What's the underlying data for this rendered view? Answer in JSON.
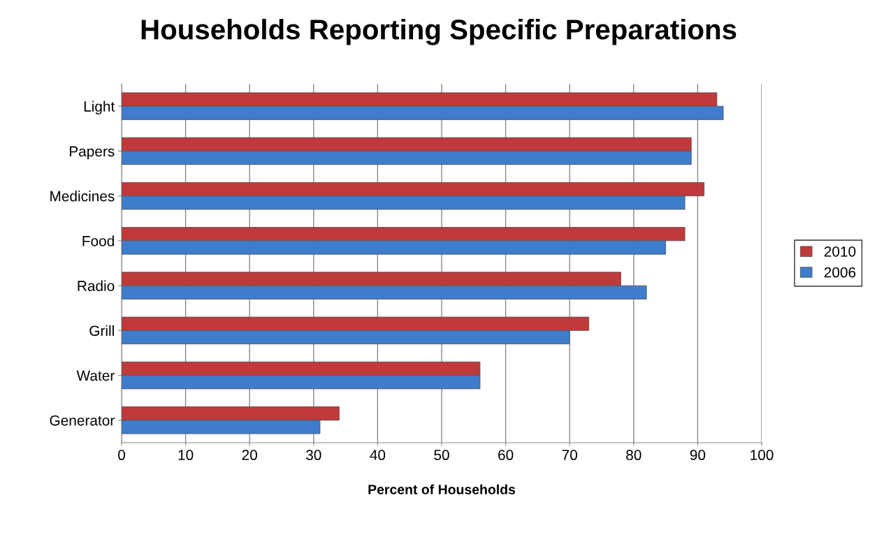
{
  "chart_data": {
    "type": "bar",
    "orientation": "horizontal",
    "title": "Households Reporting Specific Preparations",
    "xlabel": "Percent of Households",
    "categories": [
      "Light",
      "Papers",
      "Medicines",
      "Food",
      "Radio",
      "Grill",
      "Water",
      "Generator"
    ],
    "series": [
      {
        "name": "2010",
        "color": "#c0393b",
        "values": [
          93,
          89,
          91,
          88,
          78,
          73,
          56,
          34
        ]
      },
      {
        "name": "2006",
        "color": "#3f7ccc",
        "values": [
          94,
          89,
          88,
          85,
          82,
          70,
          56,
          31
        ]
      }
    ],
    "xlim": [
      0,
      100
    ],
    "xticks": [
      0,
      10,
      20,
      30,
      40,
      50,
      60,
      70,
      80,
      90,
      100
    ],
    "grid": "x",
    "legend": "right"
  }
}
